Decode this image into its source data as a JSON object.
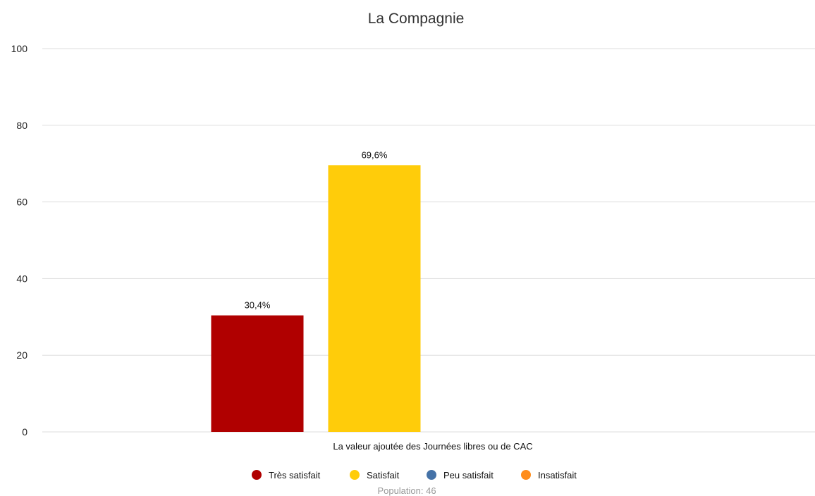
{
  "chart_data": {
    "type": "bar",
    "title": "La Compagnie",
    "categories": [
      "La valeur ajoutée des Journées libres ou de CAC"
    ],
    "series": [
      {
        "name": "Très satisfait",
        "color": "#b00000",
        "values": [
          30.4
        ],
        "label": "30,4%"
      },
      {
        "name": "Satisfait",
        "color": "#ffcc0a",
        "values": [
          69.6
        ],
        "label": "69,6%"
      },
      {
        "name": "Peu satisfait",
        "color": "#4572a7",
        "values": [
          0
        ],
        "label": ""
      },
      {
        "name": "Insatisfait",
        "color": "#ff8c1a",
        "values": [
          0
        ],
        "label": ""
      }
    ],
    "ylim": [
      0,
      100
    ],
    "yticks": [
      0,
      20,
      40,
      60,
      80,
      100
    ],
    "grid": true,
    "legend_position": "bottom-center",
    "footnote": "Population: 46"
  }
}
